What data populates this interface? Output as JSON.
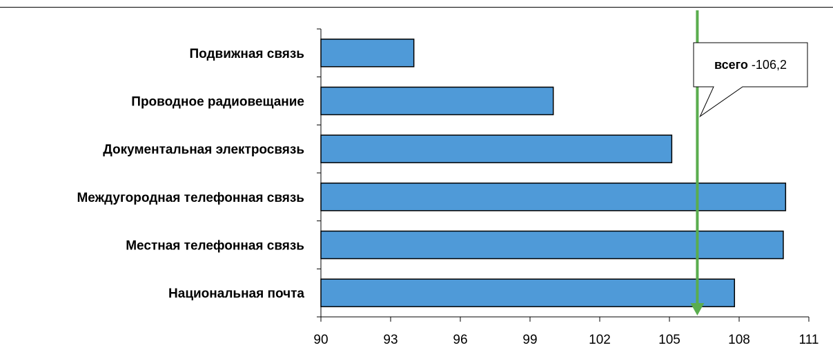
{
  "chart_data": {
    "type": "bar",
    "orientation": "horizontal",
    "categories": [
      "Подвижная связь",
      "Проводное радиовещание",
      "Документальная электросвязь",
      "Междугородная телефонная связь",
      "Местная телефонная связь",
      "Национальная почта"
    ],
    "values": [
      94.0,
      100.0,
      105.1,
      110.0,
      109.9,
      107.8
    ],
    "xlim": [
      90,
      111
    ],
    "xticks": [
      "90",
      "93",
      "96",
      "99",
      "102",
      "105",
      "108",
      "111"
    ],
    "tick_values": [
      90,
      93,
      96,
      99,
      102,
      105,
      108,
      111
    ],
    "reference_value": 106.2,
    "annotation": {
      "bold": "всего",
      "text": " -106,2"
    },
    "bar_color": "#4f9ad8",
    "reference_color": "#5aad4e",
    "grid": false
  }
}
